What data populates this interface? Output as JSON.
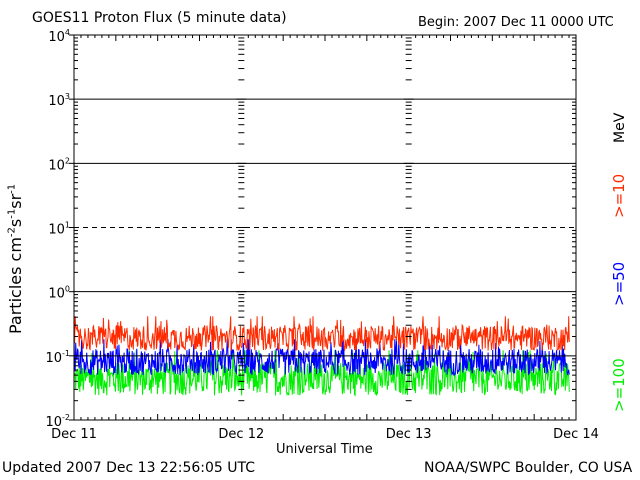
{
  "header": {
    "title": "GOES11 Proton Flux (5 minute data)",
    "begin": "Begin: 2007 Dec 11 0000 UTC"
  },
  "footer": {
    "updated": "Updated 2007 Dec 13 22:56:05 UTC",
    "credit": "NOAA/SWPC Boulder, CO USA"
  },
  "colors": {
    "ge10": "#ff2a00",
    "ge50": "#0000ff",
    "ge100": "#00ee00",
    "axis": "#000000"
  },
  "chart_data": {
    "type": "line",
    "title": "GOES11 Proton Flux (5 minute data)",
    "xlabel": "Universal Time",
    "ylabel": "Particles cm-2s-1sr-1",
    "yscale": "log",
    "ylim": [
      0.01,
      10000
    ],
    "y_ticks": [
      {
        "value": 10000,
        "base": "10",
        "exp": "4"
      },
      {
        "value": 1000,
        "base": "10",
        "exp": "3"
      },
      {
        "value": 100,
        "base": "10",
        "exp": "2"
      },
      {
        "value": 10,
        "base": "10",
        "exp": "1"
      },
      {
        "value": 1,
        "base": "10",
        "exp": "0"
      },
      {
        "value": 0.1,
        "base": "10",
        "exp": "-1"
      },
      {
        "value": 0.01,
        "base": "10",
        "exp": "-2"
      }
    ],
    "x_ticks": [
      "Dec 11",
      "Dec 12",
      "Dec 13",
      "Dec 14"
    ],
    "xlim_days": [
      0,
      3
    ],
    "data_end_day": 2.96,
    "right_axis": {
      "unit_label": "MeV",
      "series_labels": [
        ">=10",
        ">=50",
        ">=100"
      ]
    },
    "series": [
      {
        "name": ">=10",
        "color": "#ff2a00",
        "typical_range": [
          0.12,
          0.3
        ]
      },
      {
        "name": ">=50",
        "color": "#0000ff",
        "typical_range": [
          0.05,
          0.13
        ]
      },
      {
        "name": ">=100",
        "color": "#00ee00",
        "typical_range": [
          0.024,
          0.08
        ]
      }
    ],
    "dashed_gridline": 10,
    "solid_gridlines": [
      1000,
      100,
      1,
      0.1
    ]
  }
}
